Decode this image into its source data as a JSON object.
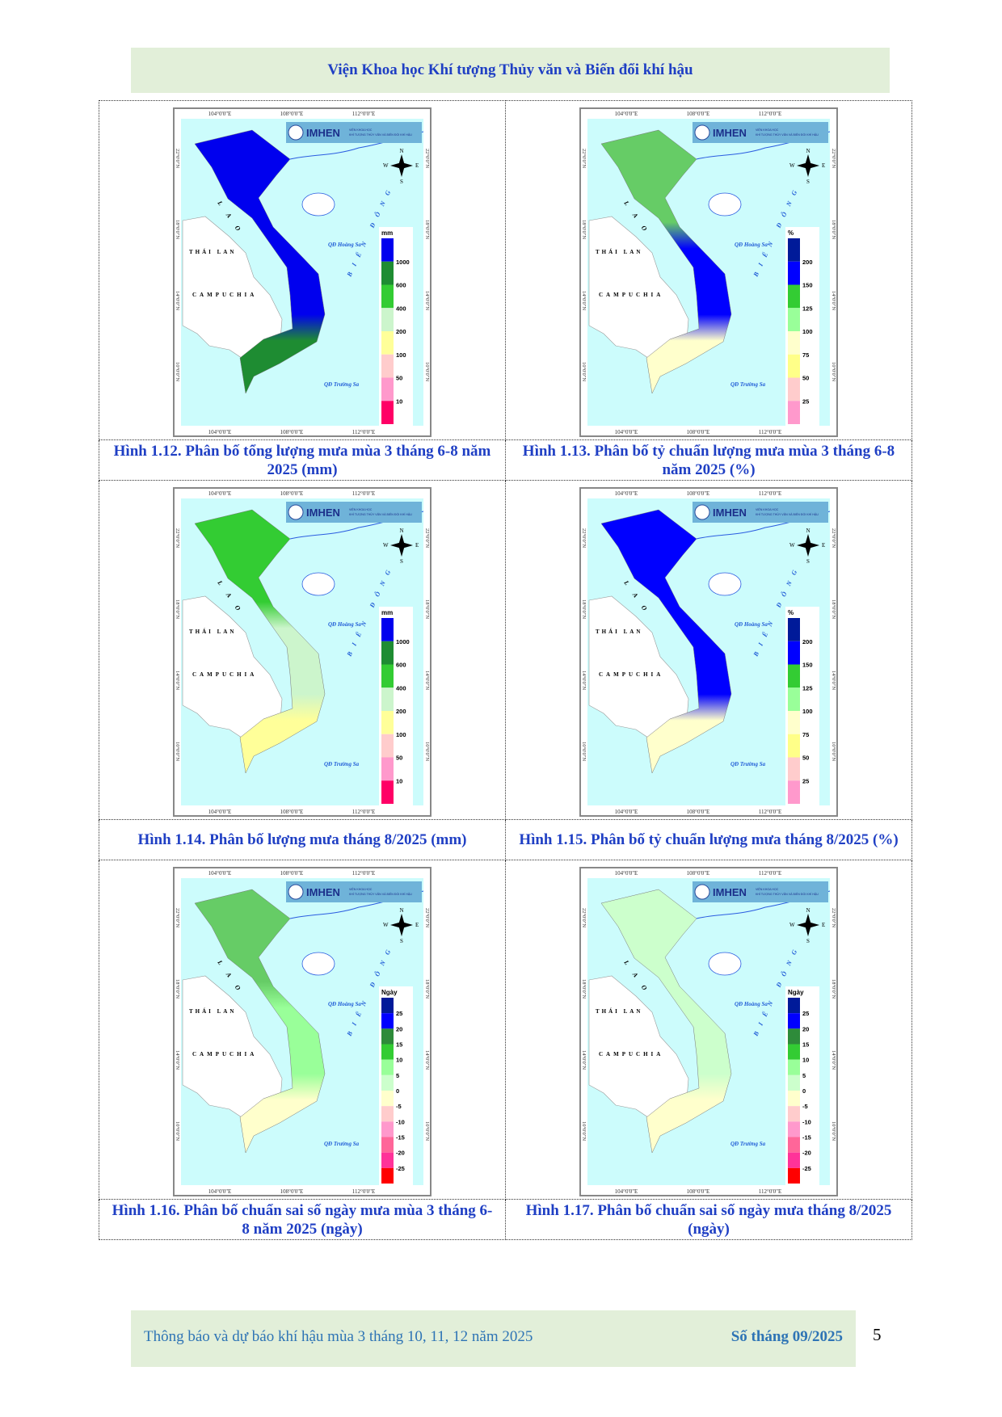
{
  "header": {
    "title": "Viện Khoa học Khí tượng Thủy văn và Biến đổi khí hậu"
  },
  "map_common": {
    "lon_ticks": [
      "104°0'0\"E",
      "108°0'0\"E",
      "112°0'0\"E"
    ],
    "lat_ticks": [
      "22°0'0\"N",
      "18°0'0\"N",
      "14°0'0\"N",
      "10°0'0\"N"
    ],
    "labels": {
      "laos": "L  A  O",
      "thailand": "THÁI LAN",
      "cambodia": "CAMPUCHIA",
      "sea": "BIỂN ĐÔNG",
      "paracel": "QĐ Hoàng Sa",
      "spratly": "QĐ Trường Sa"
    },
    "logo": {
      "name": "IMHEN",
      "sub1": "VIỆN KHOA HỌC",
      "sub2": "KHÍ TƯỢNG THỦY VĂN VÀ BIẾN ĐỔI KHÍ HẬU"
    },
    "compass": {
      "n": "N",
      "s": "S",
      "e": "E",
      "w": "W"
    },
    "sea_color": "#ccfcfc"
  },
  "legends": {
    "mm": {
      "unit": "mm",
      "labels": [
        "1000",
        "600",
        "400",
        "200",
        "100",
        "50",
        "10"
      ],
      "colors": [
        "#0000ee",
        "#1e8c32",
        "#33cc33",
        "#ccf5cc",
        "#ffff99",
        "#ffcccc",
        "#ff99cc",
        "#ff0066"
      ]
    },
    "pct": {
      "unit": "%",
      "labels": [
        "200",
        "150",
        "125",
        "100",
        "75",
        "50",
        "25"
      ],
      "colors": [
        "#001a99",
        "#0000ff",
        "#33cc33",
        "#99ff99",
        "#ffffcc",
        "#ffff88",
        "#ffcccc",
        "#ff99cc"
      ]
    },
    "days": {
      "unit": "Ngày",
      "labels": [
        "25",
        "20",
        "15",
        "10",
        "5",
        "0",
        "-5",
        "-10",
        "-15",
        "-20",
        "-25"
      ],
      "colors": [
        "#001a99",
        "#0000ff",
        "#2e8b3a",
        "#33cc33",
        "#99ff99",
        "#ccffcc",
        "#ffffcc",
        "#ffcccc",
        "#ff99cc",
        "#ff6699",
        "#ff3399",
        "#ff0000"
      ]
    }
  },
  "figures": [
    {
      "legend": "mm",
      "regions": [
        "#0000ee",
        "#0000ee",
        "#1e8c32"
      ],
      "caption": "Hình 1.12. Phân bố tổng lượng mưa mùa 3 tháng 6-8 năm 2025 (mm)"
    },
    {
      "legend": "pct",
      "regions": [
        "#66cc66",
        "#0000ff",
        "#ffffcc"
      ],
      "caption": "Hình 1.13. Phân bố tỷ chuẩn lượng mưa mùa 3 tháng 6-8 năm 2025 (%)"
    },
    {
      "legend": "mm",
      "regions": [
        "#33cc33",
        "#ccf5cc",
        "#ffff99"
      ],
      "caption": "Hình 1.14. Phân bố lượng mưa tháng 8/2025 (mm)"
    },
    {
      "legend": "pct",
      "regions": [
        "#0000ff",
        "#0000ff",
        "#ffffcc"
      ],
      "caption": "Hình 1.15. Phân bố tỷ chuẩn lượng mưa tháng 8/2025 (%)"
    },
    {
      "legend": "days",
      "regions": [
        "#66cc66",
        "#99ff99",
        "#ffffcc"
      ],
      "caption": "Hình 1.16. Phân bố chuẩn sai số ngày mưa mùa 3 tháng 6-8 năm 2025 (ngày)"
    },
    {
      "legend": "days",
      "regions": [
        "#ccffcc",
        "#ccffcc",
        "#ffffcc"
      ],
      "caption": "Hình 1.17. Phân bố chuẩn sai số ngày mưa tháng 8/2025 (ngày)"
    }
  ],
  "footer": {
    "left": "Thông báo và dự báo khí hậu mùa 3 tháng 10, 11, 12 năm 2025",
    "right": "Số tháng 09/2025",
    "page": "5"
  }
}
